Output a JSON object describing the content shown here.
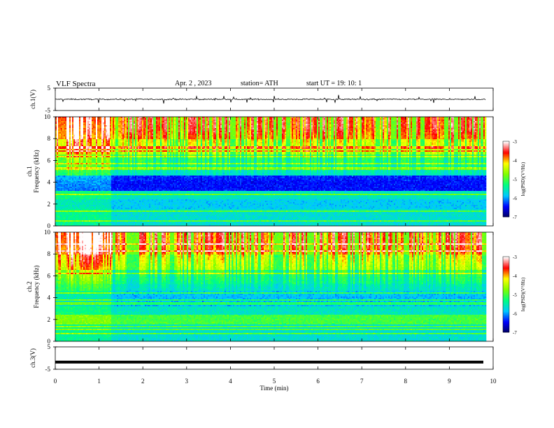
{
  "header": {
    "title": "VLF  Spectra",
    "date": "Apr. 2  , 2023",
    "station": "station= ATH",
    "start": "start  UT  =    19: 10: 1"
  },
  "chart_data": {
    "type": "heatmap",
    "x_axis": {
      "label": "Time  (min)",
      "range": [
        0,
        10
      ],
      "ticks": [
        "0",
        "1",
        "2",
        "3",
        "4",
        "5",
        "6",
        "7",
        "8",
        "9",
        "10"
      ],
      "data_end_min": 9.83
    },
    "panels": [
      {
        "id": "ch1-waveform",
        "kind": "waveform",
        "ylabel": "ch.1(V)",
        "ylim": [
          -5,
          5
        ],
        "yticks": [
          "5",
          "-5"
        ],
        "baseline": 0,
        "color": "#000000"
      },
      {
        "id": "ch1-spectrogram",
        "kind": "spectrogram",
        "ylabel": "ch.1\nFrequency  (kHz)",
        "ylim": [
          0,
          10
        ],
        "yticks": [
          "0",
          "2",
          "4",
          "6",
          "8",
          "10"
        ],
        "colorbar": {
          "label": "log(PSD)(V²/Hz)",
          "range": [
            -7,
            -3
          ],
          "ticks": [
            "-3",
            "-4",
            "-5",
            "-6",
            "-7"
          ]
        }
      },
      {
        "id": "ch2-spectrogram",
        "kind": "spectrogram",
        "ylabel": "ch.2\nFrequency  (kHz)",
        "ylim": [
          0,
          10
        ],
        "yticks": [
          "0",
          "2",
          "4",
          "6",
          "8",
          "10"
        ],
        "colorbar": {
          "label": "log(PSD)(V²/Hz)",
          "range": [
            -7,
            -3
          ],
          "ticks": [
            "-3",
            "-4",
            "-5",
            "-6",
            "-7"
          ]
        }
      },
      {
        "id": "ch3-waveform",
        "kind": "waveform",
        "ylabel": "ch.3(V)",
        "ylim": [
          -5,
          5
        ],
        "yticks": [
          "5",
          "-5"
        ],
        "baseline": -1.8,
        "color": "#000000"
      }
    ]
  },
  "colormap": [
    "#000060",
    "#0000ff",
    "#00c8ff",
    "#00ff80",
    "#80ff00",
    "#ffff00",
    "#ff0000",
    "#ffffff"
  ]
}
